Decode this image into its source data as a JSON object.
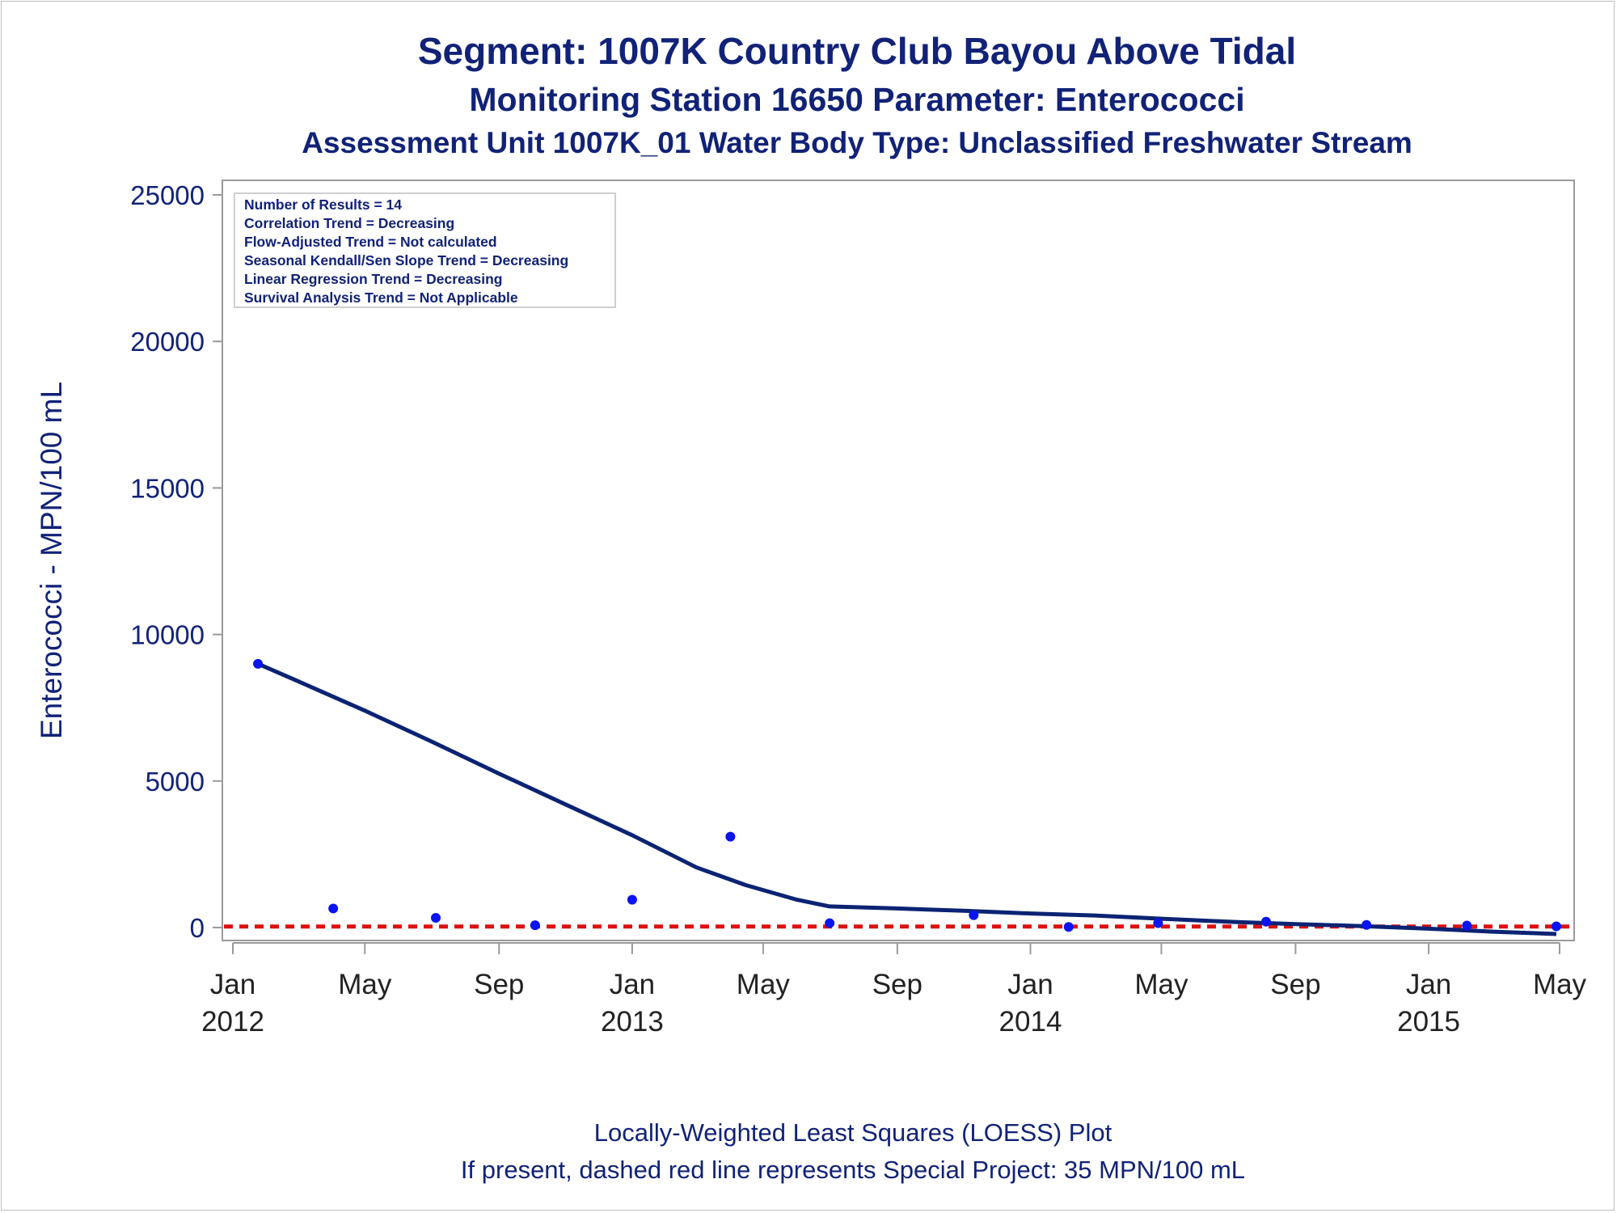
{
  "titles": {
    "line1": "Segment: 1007K  Country Club Bayou Above Tidal",
    "line2": "Monitoring Station 16650 Parameter: Enterococci",
    "line3": "Assessment Unit 1007K_01   Water Body Type: Unclassified Freshwater Stream"
  },
  "footnotes": {
    "line1": "Locally-Weighted Least Squares (LOESS) Plot",
    "line2": "If present, dashed red line represents Special Project: 35 MPN/100 mL"
  },
  "chart_data": {
    "type": "scatter",
    "ylabel": "Enterococci - MPN/100 mL",
    "ylim": [
      0,
      25000
    ],
    "yticks": [
      0,
      5000,
      10000,
      15000,
      20000,
      25000
    ],
    "xlim": [
      "2012-01-01",
      "2015-05-01"
    ],
    "xticks": [
      {
        "date": "2012-01-01",
        "label1": "Jan",
        "label2": "2012"
      },
      {
        "date": "2012-05-01",
        "label1": "May",
        "label2": ""
      },
      {
        "date": "2012-09-01",
        "label1": "Sep",
        "label2": ""
      },
      {
        "date": "2013-01-01",
        "label1": "Jan",
        "label2": "2013"
      },
      {
        "date": "2013-05-01",
        "label1": "May",
        "label2": ""
      },
      {
        "date": "2013-09-01",
        "label1": "Sep",
        "label2": ""
      },
      {
        "date": "2014-01-01",
        "label1": "Jan",
        "label2": "2014"
      },
      {
        "date": "2014-05-01",
        "label1": "May",
        "label2": ""
      },
      {
        "date": "2014-09-01",
        "label1": "Sep",
        "label2": ""
      },
      {
        "date": "2015-01-01",
        "label1": "Jan",
        "label2": "2015"
      },
      {
        "date": "2015-05-01",
        "label1": "May",
        "label2": ""
      }
    ],
    "series": [
      {
        "kind": "points",
        "color": "#0a14f0",
        "points": [
          {
            "x": "2012-01-24",
            "y": 9000
          },
          {
            "x": "2012-04-02",
            "y": 650
          },
          {
            "x": "2012-07-05",
            "y": 330
          },
          {
            "x": "2012-10-04",
            "y": 80
          },
          {
            "x": "2013-01-01",
            "y": 950
          },
          {
            "x": "2013-04-01",
            "y": 3100
          },
          {
            "x": "2013-07-01",
            "y": 150
          },
          {
            "x": "2013-11-10",
            "y": 420
          },
          {
            "x": "2014-02-05",
            "y": 20
          },
          {
            "x": "2014-04-28",
            "y": 150
          },
          {
            "x": "2014-08-05",
            "y": 200
          },
          {
            "x": "2014-11-05",
            "y": 90
          },
          {
            "x": "2015-02-05",
            "y": 70
          },
          {
            "x": "2015-04-28",
            "y": 40
          }
        ]
      },
      {
        "kind": "loess",
        "color": "#0b2373",
        "points": [
          {
            "x": "2012-01-24",
            "y": 9000
          },
          {
            "x": "2012-03-01",
            "y": 8400
          },
          {
            "x": "2012-05-01",
            "y": 7400
          },
          {
            "x": "2012-07-01",
            "y": 6350
          },
          {
            "x": "2012-09-01",
            "y": 5250
          },
          {
            "x": "2012-11-01",
            "y": 4200
          },
          {
            "x": "2013-01-01",
            "y": 3150
          },
          {
            "x": "2013-03-01",
            "y": 2050
          },
          {
            "x": "2013-04-15",
            "y": 1450
          },
          {
            "x": "2013-06-01",
            "y": 950
          },
          {
            "x": "2013-07-01",
            "y": 720
          },
          {
            "x": "2013-09-01",
            "y": 650
          },
          {
            "x": "2013-11-01",
            "y": 570
          },
          {
            "x": "2014-01-01",
            "y": 480
          },
          {
            "x": "2014-03-01",
            "y": 410
          },
          {
            "x": "2014-05-01",
            "y": 300
          },
          {
            "x": "2014-07-01",
            "y": 200
          },
          {
            "x": "2014-09-01",
            "y": 120
          },
          {
            "x": "2014-11-01",
            "y": 50
          },
          {
            "x": "2015-01-01",
            "y": -40
          },
          {
            "x": "2015-03-01",
            "y": -140
          },
          {
            "x": "2015-04-28",
            "y": -220
          }
        ]
      }
    ],
    "reference_line": {
      "y": 35,
      "color": "#dd1111",
      "style": "dashed"
    },
    "annotations": [
      "Number of Results = 14",
      "Correlation Trend = Decreasing",
      "Flow-Adjusted Trend = Not calculated",
      "Seasonal Kendall/Sen Slope Trend = Decreasing",
      "Linear Regression Trend = Decreasing",
      "Survival Analysis Trend = Not Applicable"
    ],
    "colors": {
      "text": "#112277",
      "axis": "#999999",
      "tick_label": "#112277",
      "x_tick_label": "#222222"
    }
  }
}
